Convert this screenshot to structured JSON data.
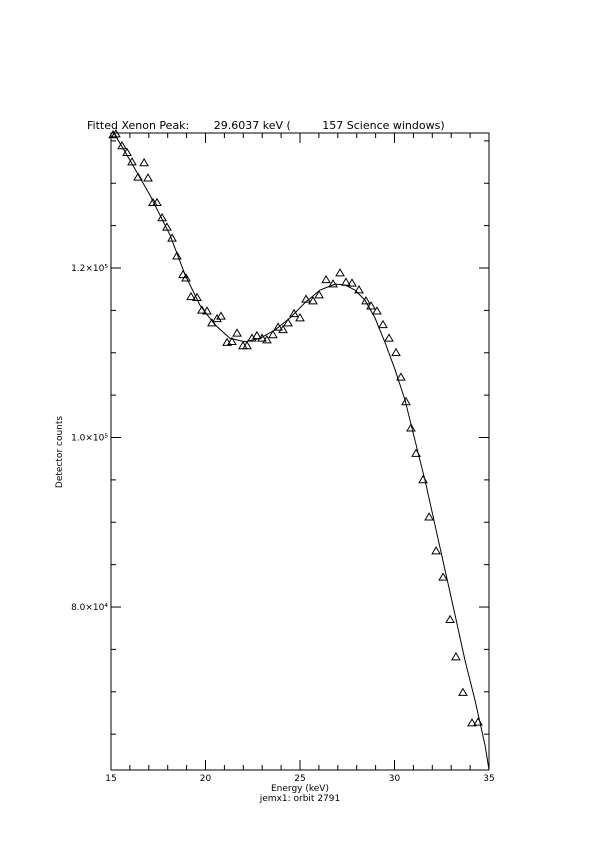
{
  "chart_data": {
    "type": "scatter",
    "title": "Fitted Xenon Peak:       29.6037 keV (         157 Science windows)",
    "x_label": "Energy (keV)",
    "subtitle": "jemx1: orbit 2791",
    "y_label": "Detector counts",
    "xlim": [
      15,
      35
    ],
    "xticks": [
      15,
      20,
      25,
      30,
      35
    ],
    "xminorticks": [
      16,
      17,
      18,
      19,
      21,
      22,
      23,
      24,
      26,
      27,
      28,
      29,
      31,
      32,
      33,
      34
    ],
    "ylim": [
      60770,
      135930
    ],
    "yticks": [
      {
        "value": 80000,
        "label": "8.0×10⁴"
      },
      {
        "value": 100000,
        "label": "1.0×10⁵"
      },
      {
        "value": 120000,
        "label": "1.2×10⁵"
      }
    ],
    "yminorticks": [
      65000,
      70000,
      75000,
      85000,
      90000,
      95000,
      105000,
      110000,
      115000,
      125000,
      130000,
      135000
    ],
    "series": [
      {
        "type": "scatter",
        "marker": "triangle",
        "color": "#000000",
        "x": [
          15.11,
          15.26,
          15.58,
          15.85,
          16.11,
          16.43,
          16.75,
          16.96,
          17.22,
          17.43,
          17.7,
          17.96,
          18.23,
          18.49,
          18.81,
          18.97,
          19.23,
          19.55,
          19.81,
          20.08,
          20.34,
          20.61,
          20.82,
          21.14,
          21.4,
          21.67,
          21.98,
          22.2,
          22.46,
          22.72,
          22.99,
          23.25,
          23.57,
          23.84,
          24.1,
          24.37,
          24.68,
          25.0,
          25.32,
          25.69,
          26.01,
          26.38,
          26.75,
          27.12,
          27.43,
          27.75,
          28.12,
          28.49,
          28.76,
          29.07,
          29.39,
          29.71,
          30.08,
          30.34,
          30.61,
          30.87,
          31.14,
          31.51,
          31.83,
          32.2,
          32.57,
          32.94,
          33.25,
          33.62,
          34.1,
          34.42
        ],
        "values": [
          135700,
          135800,
          134400,
          133600,
          132500,
          130700,
          132400,
          130600,
          127700,
          127700,
          125900,
          124800,
          123500,
          121400,
          119200,
          118800,
          116600,
          116500,
          115000,
          114900,
          113500,
          114000,
          114300,
          111200,
          111300,
          112300,
          110800,
          110800,
          111700,
          112000,
          111700,
          111500,
          112100,
          113000,
          112700,
          113500,
          114600,
          114100,
          116300,
          116100,
          116800,
          118600,
          118100,
          119400,
          118300,
          118200,
          117400,
          116100,
          115500,
          114900,
          113300,
          111700,
          110000,
          107100,
          104200,
          101100,
          98100,
          95000,
          90600,
          86600,
          83500,
          78500,
          74100,
          69900,
          66300,
          66400
        ]
      },
      {
        "type": "line",
        "color": "#000000",
        "x": [
          15.16,
          16.01,
          17.06,
          18.12,
          18.92,
          19.71,
          20.5,
          21.3,
          22.09,
          22.88,
          23.68,
          24.47,
          25.26,
          26.06,
          26.85,
          27.38,
          27.91,
          28.44,
          28.97,
          29.5,
          30.03,
          30.56,
          31.08,
          31.61,
          32.14,
          32.67,
          33.2,
          33.73,
          34.26,
          34.79,
          35.0
        ],
        "values": [
          135900,
          132700,
          128600,
          123900,
          119200,
          115600,
          113300,
          111700,
          111300,
          111700,
          112700,
          114100,
          115900,
          117400,
          118100,
          118000,
          117400,
          116200,
          114100,
          111200,
          108000,
          104400,
          99700,
          95000,
          89700,
          84400,
          79100,
          73700,
          69000,
          63700,
          60800
        ]
      }
    ]
  }
}
